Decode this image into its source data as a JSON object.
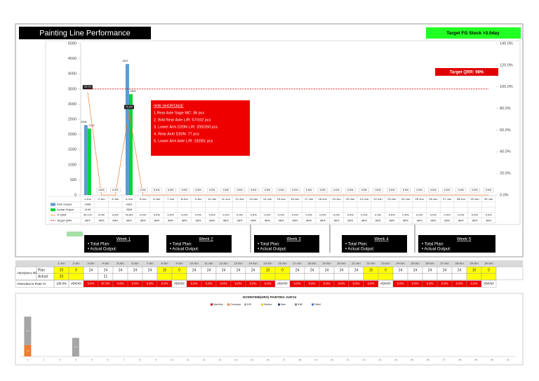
{
  "header": {
    "title": "Painting Line Performance",
    "target": "Target FG Stock >3.0day"
  },
  "chart_data": [
    {
      "type": "bar",
      "categories": [
        "1-Jun",
        "2-Jun",
        "3-Jun",
        "4-Jun",
        "5-Jun",
        "6-Jun",
        "7-Jun",
        "8-Jun",
        "9-Jun",
        "10-Jun",
        "11-Jun",
        "12-Jun",
        "13-Jun",
        "14-Jun",
        "15-Jun",
        "16-Jun",
        "17-Jun",
        "18-Jun",
        "19-Jun",
        "20-Jun",
        "21-Jun",
        "22-Jun",
        "23-Jun",
        "24-Jun",
        "25-Jun",
        "26-Jun",
        "27-Jun",
        "28-Jun",
        "29-Jun",
        "30-Jun"
      ],
      "series": [
        {
          "name": "Plan Output",
          "color": "#5b9bd5",
          "values": [
            2308,
            null,
            null,
            4323,
            null,
            null,
            null,
            null,
            null,
            null,
            null,
            null,
            null,
            null,
            null,
            null,
            null,
            null,
            null,
            null,
            null,
            null,
            null,
            null,
            null,
            null,
            null,
            null,
            null,
            null
          ]
        },
        {
          "name": "Actual Output",
          "color": "#00d43a",
          "values": [
            2193,
            null,
            null,
            3328,
            null,
            null,
            null,
            null,
            null,
            null,
            null,
            null,
            null,
            null,
            null,
            null,
            null,
            null,
            null,
            null,
            null,
            null,
            null,
            null,
            null,
            null,
            null,
            null,
            null,
            null
          ]
        },
        {
          "name": "% QRR",
          "type": "line",
          "axis": "y2",
          "color": "#ed7d31",
          "data_labels": true,
          "values": [
            95.1,
            0,
            0,
            76.8,
            0,
            0,
            0,
            0,
            0,
            0,
            0,
            0,
            0,
            0,
            0,
            0,
            0,
            0,
            0,
            0,
            0,
            0,
            0,
            0,
            0,
            0,
            0,
            0,
            0,
            0
          ],
          "value_labels": [
            "95.1%",
            "0.0%",
            "0.0%",
            "76.8%",
            "0.0%",
            "0.0%",
            "0.0%",
            "0.0%",
            "0.0%",
            "0.0%",
            "0.0%",
            "0.0%",
            "0.0%",
            "0.0%",
            "0.0%",
            "0.0%",
            "0.0%",
            "0.0%",
            "0.0%",
            "0.0%",
            "0.0%",
            "0.0%",
            "0.0%",
            "0.0%",
            "0.0%",
            "0.0%",
            "0.0%",
            "0.0%",
            "0.0%",
            "0.0%"
          ]
        },
        {
          "name": "Target QRR",
          "type": "line",
          "axis": "y2",
          "color": "#e00000",
          "dashed": true,
          "values": [
            98,
            98,
            98,
            98,
            98,
            98,
            98,
            98,
            98,
            98,
            98,
            98,
            98,
            98,
            98,
            98,
            98,
            98,
            98,
            98,
            98,
            98,
            98,
            98,
            98,
            98,
            98,
            98,
            98,
            98
          ],
          "value_labels": [
            "98%",
            "98%",
            "98%",
            "98%",
            "98%",
            "98%",
            "98%",
            "98%",
            "98%",
            "98%",
            "98%",
            "98%",
            "98%",
            "98%",
            "98%",
            "98%",
            "98%",
            "98%",
            "98%",
            "98%",
            "98%",
            "98%",
            "98%",
            "98%",
            "98%",
            "98%",
            "98%",
            "98%",
            "98%",
            "98%"
          ]
        }
      ],
      "ylim": [
        0,
        5000
      ],
      "yticks": [
        0,
        500,
        1000,
        1500,
        2000,
        2500,
        3000,
        3500,
        4000,
        4500,
        5000
      ],
      "y2lim": [
        0,
        140
      ],
      "y2ticks": [
        {
          "value": 0,
          "label": "0.0%"
        },
        {
          "value": 20,
          "label": "20.0%"
        },
        {
          "value": 40,
          "label": "40.0%"
        },
        {
          "value": 60,
          "label": "60.0%"
        },
        {
          "value": 80,
          "label": "80.0%"
        },
        {
          "value": 100,
          "label": "100.0%"
        },
        {
          "value": 120,
          "label": "120.0%"
        },
        {
          "value": 140,
          "label": "140.0%"
        }
      ],
      "target_label": "Target QRR: 98%",
      "note": {
        "title": "IHW SHORTAGE",
        "lines": [
          "1.Rear Axle Sage MC: 36 pcs",
          "2. Brkt Rear Axle L/R: 57/102 pcs",
          "3. Lower Arm D20N L/R: 200/260 pcs",
          "4. Rear Axle D20N: 77 pcs",
          "5. Lower Arm Axle L/R: 192/81 pcs"
        ]
      }
    },
    {
      "type": "bar",
      "stacked": true,
      "title": "DOWNTIME(HRS) PAINTING JUN'24",
      "categories": [
        "1",
        "2",
        "3",
        "4",
        "5",
        "6",
        "7",
        "8",
        "9",
        "10",
        "11",
        "12",
        "13",
        "14",
        "15",
        "16",
        "17",
        "18",
        "19",
        "20",
        "21",
        "22",
        "23",
        "24",
        "25",
        "26",
        "27",
        "28",
        "29",
        "30",
        "31"
      ],
      "ylim": [
        0,
        5
      ],
      "series": [
        {
          "name": "Machine",
          "color": "#c00000",
          "values": [
            null,
            null,
            null,
            null,
            null,
            null,
            null,
            null,
            null,
            null,
            null,
            null,
            null,
            null,
            null,
            null,
            null,
            null,
            null,
            null,
            null,
            null,
            null,
            null,
            null,
            null,
            null,
            null,
            null,
            null,
            null
          ]
        },
        {
          "name": "Conveyor",
          "color": "#ed7d31",
          "values": [
            1.3,
            null,
            null,
            null,
            null,
            null,
            null,
            null,
            null,
            null,
            null,
            null,
            null,
            null,
            null,
            null,
            null,
            null,
            null,
            null,
            null,
            null,
            null,
            null,
            null,
            null,
            null,
            null,
            null,
            null,
            null
          ]
        },
        {
          "name": "IHS",
          "color": "#a5a5a5",
          "values": [
            3.2,
            null,
            null,
            2.1,
            null,
            null,
            null,
            null,
            null,
            null,
            null,
            null,
            null,
            null,
            null,
            null,
            null,
            null,
            null,
            null,
            null,
            null,
            null,
            null,
            null,
            null,
            null,
            null,
            null,
            null,
            null
          ]
        },
        {
          "name": "Vendor",
          "color": "#ffc000",
          "values": [
            null,
            null,
            null,
            null,
            null,
            null,
            null,
            null,
            null,
            null,
            null,
            null,
            null,
            null,
            null,
            null,
            null,
            null,
            null,
            null,
            null,
            null,
            null,
            null,
            null,
            null,
            null,
            null,
            null,
            null,
            null
          ]
        },
        {
          "name": "Man",
          "color": "#264478",
          "values": [
            null,
            null,
            null,
            null,
            null,
            null,
            null,
            null,
            null,
            null,
            null,
            null,
            null,
            null,
            null,
            null,
            null,
            null,
            null,
            null,
            null,
            null,
            null,
            null,
            null,
            null,
            null,
            null,
            null,
            null,
            null
          ]
        },
        {
          "name": "IHW",
          "color": "#7f7f7f",
          "values": [
            null,
            null,
            null,
            null,
            null,
            null,
            null,
            null,
            null,
            null,
            null,
            null,
            null,
            null,
            null,
            null,
            null,
            null,
            null,
            null,
            null,
            null,
            null,
            null,
            null,
            null,
            null,
            null,
            null,
            null,
            null
          ]
        },
        {
          "name": "Pallet",
          "color": "#4472c4",
          "values": [
            null,
            null,
            null,
            null,
            null,
            null,
            null,
            null,
            null,
            null,
            null,
            null,
            null,
            null,
            null,
            null,
            null,
            null,
            null,
            null,
            null,
            null,
            null,
            null,
            null,
            null,
            null,
            null,
            null,
            null,
            null
          ]
        }
      ]
    }
  ],
  "weeks": [
    {
      "label": "Week 1",
      "plan": "• Total Plan:",
      "actual": "• Actual Output:"
    },
    {
      "label": "Week 2",
      "plan": "• Total Plan:",
      "actual": "• Actual Output:"
    },
    {
      "label": "Week 3",
      "plan": "• Total Plan:",
      "actual": "• Actual Output:"
    },
    {
      "label": "Week 4",
      "plan": "• Total Plan:",
      "actual": "• Actual Output:"
    },
    {
      "label": "Week 5",
      "plan": "• Total Plan:",
      "actual": "• Actual Output:"
    }
  ],
  "attendance": {
    "row_label": "Attendance MP",
    "plan_label": "Plan",
    "actual_label": "Actual",
    "rate_label": "Attendance Rate %",
    "plan": [
      20,
      0,
      24,
      24,
      24,
      24,
      24,
      15,
      0,
      24,
      24,
      24,
      24,
      24,
      15,
      0,
      24,
      24,
      24,
      24,
      24,
      15,
      0,
      24,
      24,
      24,
      24,
      24,
      15,
      0
    ],
    "actual": [
      20,
      null,
      null,
      21,
      null,
      null,
      null,
      null,
      null,
      null,
      null,
      null,
      null,
      null,
      null,
      null,
      null,
      null,
      null,
      null,
      null,
      null,
      null,
      null,
      null,
      null,
      null,
      null,
      null,
      null
    ],
    "rate": [
      "100.0%",
      "#DIV/0!",
      "0.0%",
      "87.5%",
      "0.0%",
      "0.0%",
      "0.0%",
      "0.0%",
      "#DIV/0!",
      "0.0%",
      "0.0%",
      "0.0%",
      "0.0%",
      "0.0%",
      "0.0%",
      "#DIV/0!",
      "0.0%",
      "0.0%",
      "0.0%",
      "0.0%",
      "0.0%",
      "0.0%",
      "#DIV/0!",
      "0.0%",
      "0.0%",
      "0.0%",
      "0.0%",
      "0.0%",
      "0.0%",
      "#DIV/0!"
    ]
  }
}
